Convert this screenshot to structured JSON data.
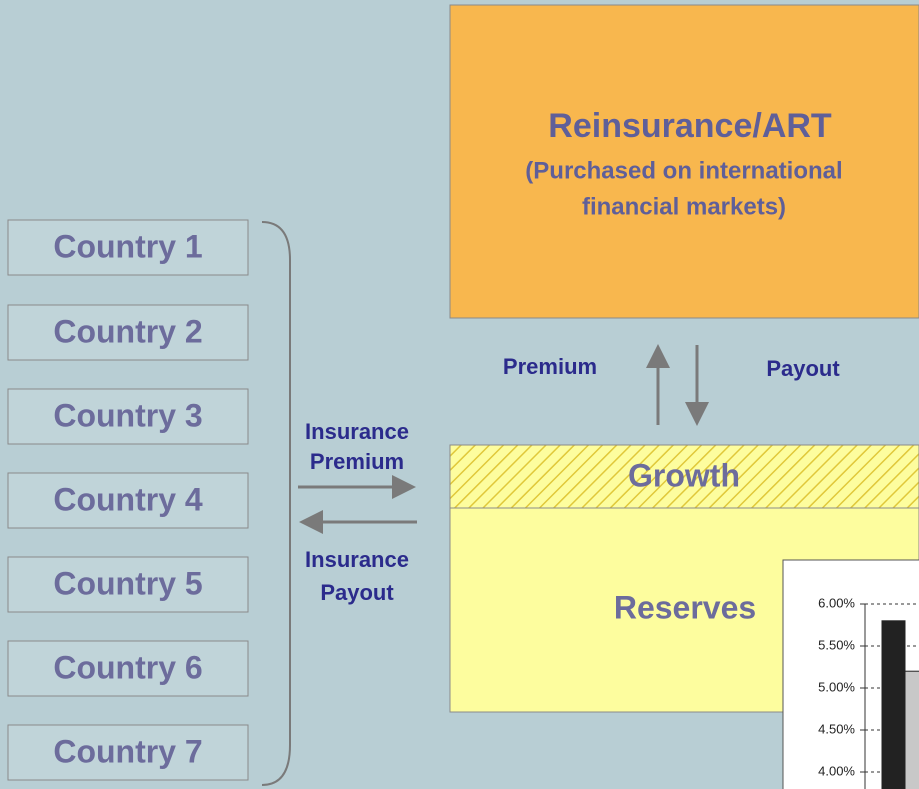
{
  "countries": [
    "Country 1",
    "Country 2",
    "Country 3",
    "Country 4",
    "Country 5",
    "Country 6",
    "Country 7"
  ],
  "reinsurance": {
    "title": "Reinsurance/ART",
    "subtitle": [
      "(Purchased on international",
      "financial markets)"
    ]
  },
  "flows": {
    "premium": "Premium",
    "payout": "Payout",
    "insurance_premium": [
      "Insurance",
      "Premium"
    ],
    "insurance_payout": [
      "Insurance",
      "Payout"
    ]
  },
  "pool": {
    "growth": "Growth",
    "reserves": "Reserves"
  },
  "chart_data": {
    "type": "bar",
    "categories": [
      null,
      null
    ],
    "values": [
      5.8,
      5.2
    ],
    "colors": [
      "#222222",
      "#c8c8c8"
    ],
    "ylim": [
      4,
      6
    ],
    "yticks": [
      {
        "value": 6,
        "label": "6.00%"
      },
      {
        "value": 5.5,
        "label": "5.50%"
      },
      {
        "value": 5,
        "label": "5.00%"
      },
      {
        "value": 4.5,
        "label": "4.50%"
      },
      {
        "value": 4,
        "label": "4.00%"
      }
    ],
    "grid": true
  }
}
